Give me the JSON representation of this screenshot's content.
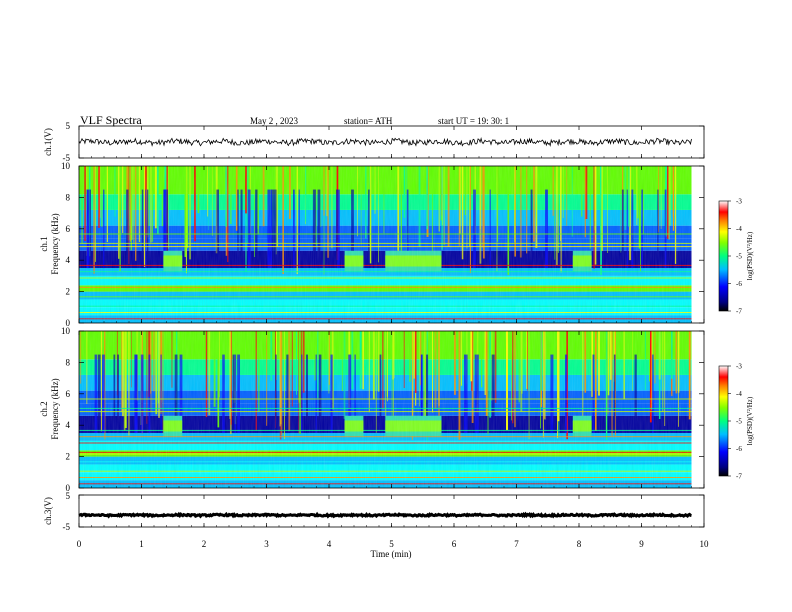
{
  "header": {
    "title": "VLF Spectra",
    "date": "May 2 , 2023",
    "station": "station= ATH",
    "start": "start UT = 19: 30: 1"
  },
  "chart_data": {
    "type": "heatmap",
    "x_axis": {
      "label": "Time (min)",
      "range": [
        0,
        10
      ],
      "ticks": [
        "0",
        "1",
        "2",
        "3",
        "4",
        "5",
        "6",
        "7",
        "8",
        "9",
        "10"
      ]
    },
    "panels": [
      {
        "id": "ch1-waveform",
        "type": "line",
        "ylabel": "ch.1(V)",
        "ylim": [
          -5,
          5
        ],
        "yticks": [
          "5",
          "-5"
        ],
        "baseline": 0
      },
      {
        "id": "ch1-spectrogram",
        "type": "heatmap",
        "ylabel_top": "ch.1",
        "ylabel": "Frequency (kHz)",
        "ylim": [
          0,
          10
        ],
        "yticks": [
          "0",
          "2",
          "4",
          "6",
          "8",
          "10"
        ],
        "colorbar": {
          "label": "log(PSD)(V²/Hz)",
          "range": [
            -7,
            -3
          ],
          "ticks": [
            "-3",
            "-4",
            "-5",
            "-6",
            "-7"
          ]
        },
        "bursts_min": [
          [
            1.35,
            1.65
          ],
          [
            4.25,
            4.55
          ],
          [
            4.9,
            5.8
          ],
          [
            7.9,
            8.2
          ]
        ],
        "burst_band_khz": [
          3.6,
          4.4
        ]
      },
      {
        "id": "ch2-spectrogram",
        "type": "heatmap",
        "ylabel_top": "ch.2",
        "ylabel": "Frequency (kHz)",
        "ylim": [
          0,
          10
        ],
        "yticks": [
          "0",
          "2",
          "4",
          "6",
          "8",
          "10"
        ],
        "colorbar": {
          "label": "log(PSD)(V²/Hz)",
          "range": [
            -7,
            -3
          ],
          "ticks": [
            "-3",
            "-4",
            "-5",
            "-6",
            "-7"
          ]
        },
        "bursts_min": [
          [
            1.35,
            1.65
          ],
          [
            4.25,
            4.55
          ],
          [
            4.9,
            5.8
          ],
          [
            7.9,
            8.2
          ]
        ],
        "burst_band_khz": [
          3.6,
          4.4
        ]
      },
      {
        "id": "ch3-waveform",
        "type": "line",
        "ylabel": "ch.3(V)",
        "ylim": [
          -5,
          5
        ],
        "yticks": [
          "5",
          "-5"
        ],
        "baseline": -1.3
      }
    ],
    "data_end_min": 9.8
  },
  "colors": {
    "colormap": [
      "#000080",
      "#0000ff",
      "#0080ff",
      "#00ffff",
      "#00ff80",
      "#80ff00",
      "#ffff00",
      "#ff8000",
      "#ff0000",
      "#ffffff"
    ]
  }
}
